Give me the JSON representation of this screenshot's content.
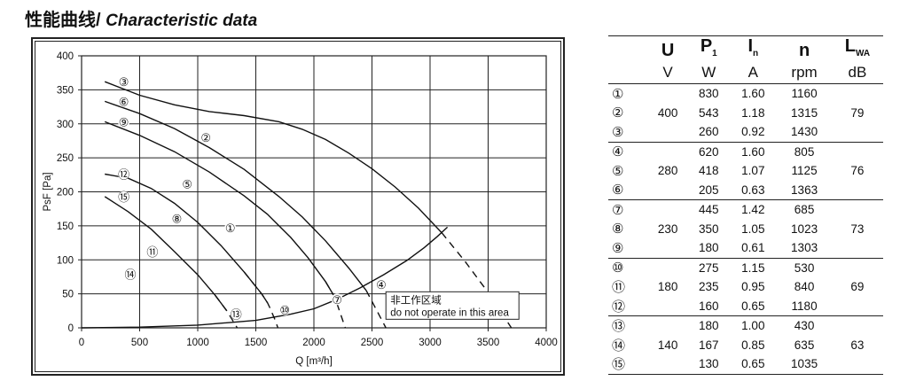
{
  "heading": {
    "zh": "性能曲线",
    "sep": "/ ",
    "en": "Characteristic data"
  },
  "chart_data": {
    "type": "line",
    "xlabel": "Q [m³/h]",
    "ylabel": "PsF [Pa]",
    "xlim": [
      0,
      4000
    ],
    "ylim": [
      0,
      400
    ],
    "xticks": [
      "0",
      "500",
      "1000",
      "1500",
      "2000",
      "2500",
      "3000",
      "3500",
      "4000"
    ],
    "yticks": [
      "0",
      "50",
      "100",
      "150",
      "200",
      "250",
      "300",
      "350",
      "400"
    ],
    "grid": true,
    "series": [
      {
        "name": "②",
        "label_at": [
          1070,
          280
        ],
        "values": [
          [
            200,
            362
          ],
          [
            500,
            342
          ],
          [
            800,
            328
          ],
          [
            1100,
            318
          ],
          [
            1400,
            312
          ],
          [
            1700,
            303
          ],
          [
            1900,
            292
          ],
          [
            2100,
            277
          ],
          [
            2300,
            257
          ],
          [
            2500,
            234
          ],
          [
            2700,
            207
          ],
          [
            2900,
            176
          ],
          [
            3100,
            140
          ],
          [
            3300,
            98
          ],
          [
            3500,
            52
          ],
          [
            3700,
            0
          ]
        ]
      },
      {
        "name": "⑤",
        "label_at": [
          910,
          212
        ],
        "values": [
          [
            200,
            333
          ],
          [
            500,
            315
          ],
          [
            800,
            293
          ],
          [
            1100,
            265
          ],
          [
            1400,
            233
          ],
          [
            1700,
            193
          ],
          [
            1900,
            163
          ],
          [
            2100,
            128
          ],
          [
            2300,
            88
          ],
          [
            2450,
            55
          ],
          [
            2620,
            0
          ]
        ]
      },
      {
        "name": "⑧",
        "label_at": [
          820,
          161
        ],
        "values": [
          [
            200,
            303
          ],
          [
            500,
            283
          ],
          [
            800,
            259
          ],
          [
            1100,
            229
          ],
          [
            1400,
            194
          ],
          [
            1600,
            167
          ],
          [
            1800,
            133
          ],
          [
            1950,
            103
          ],
          [
            2100,
            68
          ],
          [
            2180,
            45
          ],
          [
            2270,
            0
          ]
        ]
      },
      {
        "name": "⑪",
        "label_at": [
          610,
          112
        ],
        "values": [
          [
            200,
            226
          ],
          [
            400,
            220
          ],
          [
            600,
            205
          ],
          [
            800,
            183
          ],
          [
            1000,
            155
          ],
          [
            1200,
            121
          ],
          [
            1400,
            82
          ],
          [
            1550,
            50
          ],
          [
            1600,
            37
          ],
          [
            1620,
            30
          ],
          [
            1640,
            22
          ],
          [
            1660,
            14
          ],
          [
            1690,
            0
          ]
        ]
      },
      {
        "name": "⑭",
        "label_at": [
          420,
          79
        ],
        "values": [
          [
            200,
            193
          ],
          [
            400,
            171
          ],
          [
            600,
            145
          ],
          [
            800,
            112
          ],
          [
            1000,
            78
          ],
          [
            1150,
            48
          ],
          [
            1250,
            25
          ],
          [
            1340,
            0
          ]
        ]
      },
      {
        "name": "①",
        "label_at": [
          1280,
          147
        ],
        "values": [
          [
            0,
            0
          ],
          [
            500,
            1
          ],
          [
            1000,
            4
          ],
          [
            1500,
            11
          ],
          [
            1800,
            20
          ],
          [
            2000,
            28
          ],
          [
            2200,
            42
          ],
          [
            2400,
            59
          ],
          [
            2600,
            78
          ],
          [
            2800,
            99
          ],
          [
            2950,
            118
          ],
          [
            3060,
            134
          ],
          [
            3150,
            148
          ]
        ]
      }
    ],
    "curve_labels": [
      "③",
      "⑥",
      "⑨",
      "⑫",
      "⑮",
      "④",
      "⑦",
      "⑩",
      "⑬"
    ],
    "annotation": {
      "line1": "非工作区域",
      "line2": "do not operate in this area"
    }
  },
  "table": {
    "headers": [
      {
        "sym": "U",
        "sub": ""
      },
      {
        "sym": "P",
        "sub": "1"
      },
      {
        "sym": "I",
        "sub": "n"
      },
      {
        "sym": "n",
        "sub": ""
      },
      {
        "sym": "L",
        "sub": "WA"
      }
    ],
    "units": [
      "V",
      "W",
      "A",
      "rpm",
      "dB"
    ],
    "groups": [
      {
        "u": "400",
        "lwa": "79",
        "rows": [
          {
            "idx": "①",
            "p": "830",
            "i": "1.60",
            "n": "1160"
          },
          {
            "idx": "②",
            "p": "543",
            "i": "1.18",
            "n": "1315"
          },
          {
            "idx": "③",
            "p": "260",
            "i": "0.92",
            "n": "1430"
          }
        ]
      },
      {
        "u": "280",
        "lwa": "76",
        "rows": [
          {
            "idx": "④",
            "p": "620",
            "i": "1.60",
            "n": "805"
          },
          {
            "idx": "⑤",
            "p": "418",
            "i": "1.07",
            "n": "1125"
          },
          {
            "idx": "⑥",
            "p": "205",
            "i": "0.63",
            "n": "1363"
          }
        ]
      },
      {
        "u": "230",
        "lwa": "73",
        "rows": [
          {
            "idx": "⑦",
            "p": "445",
            "i": "1.42",
            "n": "685"
          },
          {
            "idx": "⑧",
            "p": "350",
            "i": "1.05",
            "n": "1023"
          },
          {
            "idx": "⑨",
            "p": "180",
            "i": "0.61",
            "n": "1303"
          }
        ]
      },
      {
        "u": "180",
        "lwa": "69",
        "rows": [
          {
            "idx": "⑩",
            "p": "275",
            "i": "1.15",
            "n": "530"
          },
          {
            "idx": "⑪",
            "p": "235",
            "i": "0.95",
            "n": "840"
          },
          {
            "idx": "⑫",
            "p": "160",
            "i": "0.65",
            "n": "1180"
          }
        ]
      },
      {
        "u": "140",
        "lwa": "63",
        "rows": [
          {
            "idx": "⑬",
            "p": "180",
            "i": "1.00",
            "n": "430"
          },
          {
            "idx": "⑭",
            "p": "167",
            "i": "0.85",
            "n": "635"
          },
          {
            "idx": "⑮",
            "p": "130",
            "i": "0.65",
            "n": "1035"
          }
        ]
      }
    ]
  }
}
